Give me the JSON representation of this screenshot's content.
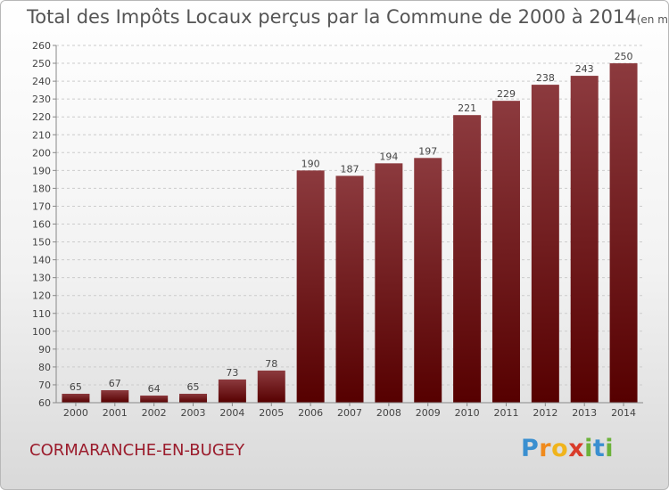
{
  "header": {
    "title": "Total des Impôts Locaux perçus par la Commune de 2000 à 2014",
    "unit": "(en milliers d'€)"
  },
  "footer": {
    "commune": "CORMARANCHE-EN-BUGEY",
    "logo_letters": [
      {
        "ch": "P",
        "color": "#3a8fd0"
      },
      {
        "ch": "r",
        "color": "#f08a1c"
      },
      {
        "ch": "o",
        "color": "#f0b41c"
      },
      {
        "ch": "x",
        "color": "#d93c2b"
      },
      {
        "ch": "i",
        "color": "#6cb23a"
      },
      {
        "ch": "t",
        "color": "#3a8fd0"
      },
      {
        "ch": "i",
        "color": "#6cb23a"
      }
    ]
  },
  "chart_data": {
    "type": "bar",
    "categories": [
      "2000",
      "2001",
      "2002",
      "2003",
      "2004",
      "2005",
      "2006",
      "2007",
      "2008",
      "2009",
      "2010",
      "2011",
      "2012",
      "2013",
      "2014"
    ],
    "values": [
      65,
      67,
      64,
      65,
      73,
      78,
      190,
      187,
      194,
      197,
      221,
      229,
      238,
      243,
      250
    ],
    "ylim": [
      60,
      260
    ],
    "yticks": [
      60,
      70,
      80,
      90,
      100,
      110,
      120,
      130,
      140,
      150,
      160,
      170,
      180,
      190,
      200,
      210,
      220,
      230,
      240,
      250,
      260
    ],
    "grid": "horizontal dashed",
    "colors": {
      "bar_top": "#8c3a3e",
      "bar_bottom": "#560000",
      "grid": "#cccccc",
      "axis_text": "#444444"
    }
  }
}
